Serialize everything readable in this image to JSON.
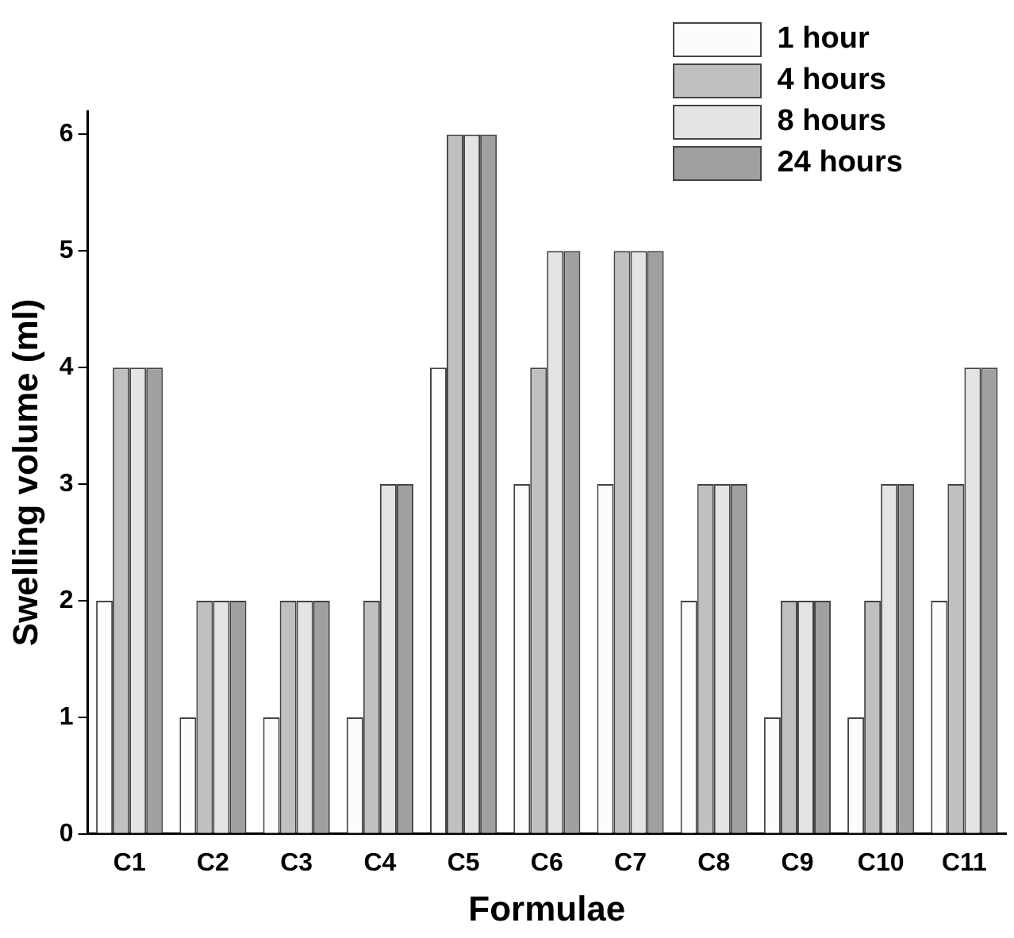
{
  "chart_data": {
    "type": "bar",
    "xlabel": "Formulae",
    "ylabel": "Swelling volume (ml)",
    "categories": [
      "C1",
      "C2",
      "C3",
      "C4",
      "C5",
      "C6",
      "C7",
      "C8",
      "C9",
      "C10",
      "C11"
    ],
    "series": [
      {
        "name": "1 hour",
        "color": "#fcfcfc",
        "values": [
          2,
          1,
          1,
          1,
          4,
          3,
          3,
          2,
          1,
          1,
          2
        ]
      },
      {
        "name": "4 hours",
        "color": "#c0c0c0",
        "values": [
          4,
          2,
          2,
          2,
          6,
          4,
          5,
          3,
          2,
          2,
          3
        ]
      },
      {
        "name": "8 hours",
        "color": "#e4e4e4",
        "values": [
          4,
          2,
          2,
          3,
          6,
          5,
          5,
          3,
          2,
          3,
          4
        ]
      },
      {
        "name": "24 hours",
        "color": "#a0a0a0",
        "values": [
          4,
          2,
          2,
          3,
          6,
          5,
          5,
          3,
          2,
          3,
          4
        ]
      }
    ],
    "ylim": [
      0,
      6.2
    ],
    "yticks": [
      0,
      1,
      2,
      3,
      4,
      5,
      6
    ],
    "grid": false,
    "legend": "top right"
  }
}
